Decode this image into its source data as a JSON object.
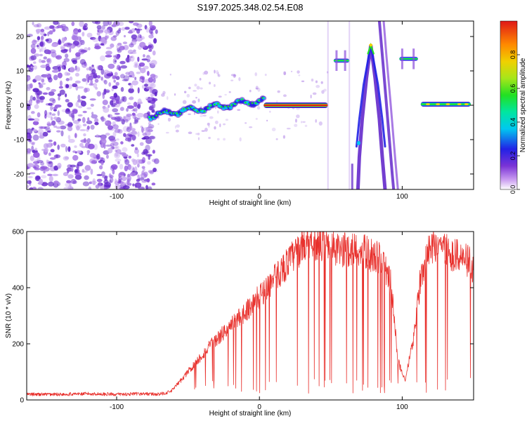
{
  "figure_title": "S197.2025.348.02.54.E08",
  "colors": {
    "snr_line": "#e8302c",
    "spectrogram_noise": "#8a4ddd",
    "spectrogram_core": "#e0231f"
  },
  "chart_data": [
    {
      "type": "heatmap",
      "title": "S197.2025.348.02.54.E08",
      "xlabel": "Height of straight line (km)",
      "ylabel": "Frequency (Hz)",
      "xlim": [
        -163,
        150
      ],
      "ylim": [
        -24.5,
        24.5
      ],
      "x_ticks": [
        -100,
        0,
        100
      ],
      "y_ticks": [
        -20,
        -10,
        0,
        10,
        20
      ],
      "colorbar": {
        "label": "Normalized spectral amplitude",
        "range": [
          0,
          1
        ],
        "ticks": [
          "0.0",
          "0.2",
          "0.4",
          "0.6",
          "0.8"
        ],
        "colormap": "rainbow"
      },
      "features": [
        {
          "name": "noise-region",
          "x_range": [
            -163,
            -73
          ],
          "freq_range": [
            -24.5,
            24.5
          ],
          "amplitude": 0.15
        },
        {
          "name": "wandering-trace",
          "x_range": [
            -77,
            3
          ],
          "freq_range": [
            -3,
            2
          ],
          "amplitude": 0.35
        },
        {
          "name": "carrier-line",
          "x_range": [
            3,
            48
          ],
          "freq": 0,
          "amplitude": 1.0
        },
        {
          "name": "high-tone-1",
          "x_range": [
            52,
            63
          ],
          "freq": 13,
          "amplitude": 0.4
        },
        {
          "name": "chevron-peak",
          "x": 78,
          "freq": 17.5,
          "amplitude": 0.5
        },
        {
          "name": "high-tone-2",
          "x_range": [
            98,
            111
          ],
          "freq": 13.5,
          "amplitude": 0.4
        },
        {
          "name": "carrier-line-2",
          "x_range": [
            113,
            148
          ],
          "freq": 0.3,
          "amplitude": 0.55
        }
      ]
    },
    {
      "type": "line",
      "xlabel": "Height of straight line (km)",
      "ylabel": "SNR (10 * v/v)",
      "xlim": [
        -163,
        150
      ],
      "ylim": [
        0,
        600
      ],
      "x_ticks": [
        -100,
        0,
        100
      ],
      "y_ticks": [
        0,
        200,
        400,
        600
      ],
      "series": [
        {
          "x": [
            -163,
            -140,
            -120,
            -100,
            -80,
            -70,
            -62,
            -55,
            -45,
            -35,
            -25,
            -15,
            -5,
            5,
            15,
            25,
            35,
            45,
            55,
            65,
            75,
            85,
            92,
            97,
            102,
            108,
            113,
            118,
            125,
            135,
            145,
            150
          ],
          "values": [
            20,
            20,
            22,
            20,
            22,
            20,
            30,
            70,
            130,
            190,
            240,
            290,
            340,
            400,
            460,
            520,
            575,
            550,
            530,
            540,
            525,
            500,
            420,
            140,
            70,
            220,
            440,
            540,
            560,
            520,
            500,
            470
          ],
          "color": "#e8302c"
        }
      ]
    }
  ]
}
